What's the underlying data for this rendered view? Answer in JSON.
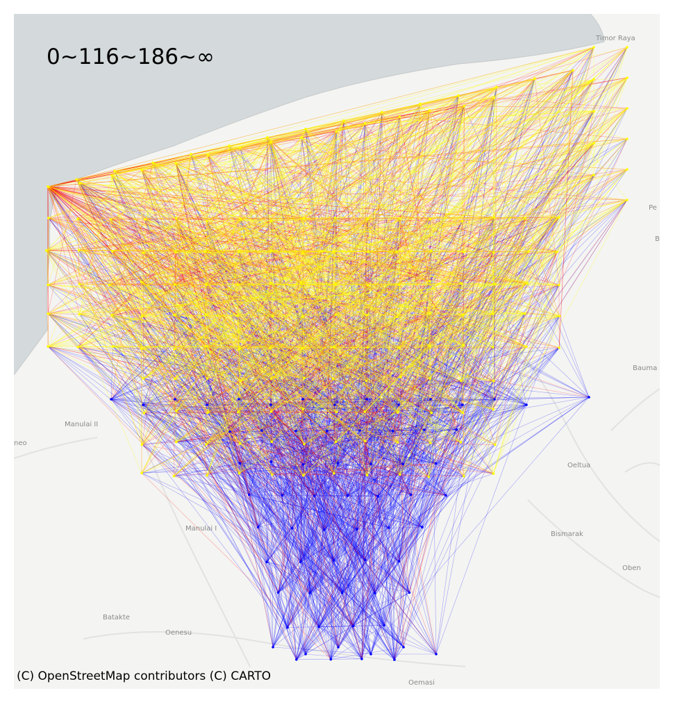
{
  "legend_label": "0~116~186~∞",
  "attribution": "(C) OpenStreetMap contributors (C) CARTO",
  "place_labels": {
    "timor_raya": "Timor Raya",
    "pe": "Pe",
    "b": "B",
    "bauma": "Bauma",
    "manulai_ii": "Manulai II",
    "neo": "neo",
    "oeltua": "Oeltua",
    "manulai_i": "Manulai I",
    "bismarak": "Bismarak",
    "oben": "Oben",
    "batakte": "Batakte",
    "oenesu": "Oenesu",
    "oemasi": "Oemasi"
  },
  "colors": {
    "sea": "#d4dadc",
    "land": "#f4f4f2",
    "road": "#e2e2e2",
    "bin_low": "#0000ff",
    "bin_mid": "#ff0000",
    "bin_high": "#ffff00"
  },
  "thresholds": [
    0,
    116,
    186,
    "∞"
  ]
}
